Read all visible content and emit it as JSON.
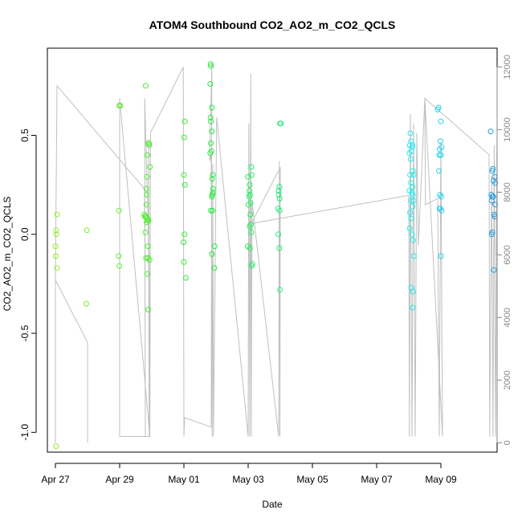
{
  "chart_data": {
    "type": "scatter",
    "title": "ATOM4 Southbound CO2_AO2_m_CO2_QCLS",
    "xlabel": "Date",
    "ylabel": "CO2_AO2_m_CO2_QCLS",
    "grid": false,
    "x_ticks": [
      "Apr 27",
      "Apr 29",
      "May 01",
      "May 03",
      "May 05",
      "May 07",
      "May 09"
    ],
    "y_ticks": [
      "-1.0",
      "-0.5",
      "0.0",
      "0.5"
    ],
    "y2_ticks": [
      "0",
      "2000",
      "4000",
      "6000",
      "8000",
      "10000",
      "12000"
    ],
    "xlim": [
      -0.25,
      13.75
    ],
    "ylim": [
      -1.1,
      0.94
    ],
    "y2lim": [
      -300,
      12600
    ],
    "colors": {
      "gradient_start": "#99ee22",
      "gradient_mid": "#22ee33",
      "gradient_late": "#22eeee",
      "gradient_end": "#2299dd",
      "altitude_line": "#c0c0c0",
      "axis": "#000000",
      "secondary_axis": "#888888"
    },
    "points": [
      [
        0.02,
        0.02
      ],
      [
        0.03,
        0.0
      ],
      [
        0.0,
        -0.06
      ],
      [
        0.01,
        -0.11
      ],
      [
        0.05,
        0.1
      ],
      [
        0.05,
        -0.17
      ],
      [
        0.02,
        -1.07
      ],
      [
        0.98,
        0.02
      ],
      [
        0.96,
        -0.35
      ],
      [
        1.99,
        0.65
      ],
      [
        2.02,
        0.65
      ],
      [
        1.98,
        0.12
      ],
      [
        1.97,
        -0.11
      ],
      [
        1.99,
        -0.16
      ],
      [
        2.81,
        0.75
      ],
      [
        2.77,
        0.1
      ],
      [
        2.79,
        0.09
      ],
      [
        2.82,
        0.09
      ],
      [
        2.8,
        0.09
      ],
      [
        2.86,
        0.08
      ],
      [
        2.87,
        0.07
      ],
      [
        2.84,
        0.06
      ],
      [
        2.83,
        0.23
      ],
      [
        2.84,
        0.2
      ],
      [
        2.85,
        0.29
      ],
      [
        2.86,
        0.4
      ],
      [
        2.89,
        0.46
      ],
      [
        2.92,
        0.45
      ],
      [
        2.91,
        0.46
      ],
      [
        2.94,
        0.34
      ],
      [
        2.83,
        0.15
      ],
      [
        2.8,
        0.01
      ],
      [
        2.9,
        0.07
      ],
      [
        2.88,
        -0.06
      ],
      [
        2.82,
        -0.12
      ],
      [
        2.89,
        -0.12
      ],
      [
        2.93,
        -0.13
      ],
      [
        2.86,
        -0.2
      ],
      [
        2.89,
        -0.38
      ],
      [
        4.03,
        0.57
      ],
      [
        4.01,
        0.49
      ],
      [
        4.0,
        0.3
      ],
      [
        4.03,
        0.25
      ],
      [
        4.02,
        0.0
      ],
      [
        3.99,
        -0.04
      ],
      [
        4.0,
        -0.14
      ],
      [
        4.06,
        -0.22
      ],
      [
        4.83,
        0.86
      ],
      [
        4.84,
        0.85
      ],
      [
        4.82,
        0.76
      ],
      [
        4.87,
        0.64
      ],
      [
        4.83,
        0.59
      ],
      [
        4.84,
        0.57
      ],
      [
        4.87,
        0.52
      ],
      [
        4.84,
        0.46
      ],
      [
        4.86,
        0.42
      ],
      [
        4.82,
        0.41
      ],
      [
        4.9,
        0.3
      ],
      [
        4.88,
        0.28
      ],
      [
        4.91,
        0.23
      ],
      [
        4.88,
        0.2
      ],
      [
        4.9,
        0.21
      ],
      [
        4.87,
        0.19
      ],
      [
        4.89,
        0.12
      ],
      [
        4.84,
        0.12
      ],
      [
        4.96,
        -0.06
      ],
      [
        4.87,
        -0.1
      ],
      [
        4.95,
        -0.17
      ],
      [
        5.99,
        0.29
      ],
      [
        6.1,
        0.34
      ],
      [
        6.11,
        0.3
      ],
      [
        6.05,
        0.25
      ],
      [
        6.04,
        0.22
      ],
      [
        6.06,
        0.2
      ],
      [
        6.03,
        0.19
      ],
      [
        6.08,
        0.16
      ],
      [
        6.01,
        0.15
      ],
      [
        6.07,
        0.1
      ],
      [
        6.05,
        0.04
      ],
      [
        6.09,
        0.05
      ],
      [
        6.1,
        0.01
      ],
      [
        5.99,
        -0.06
      ],
      [
        6.06,
        -0.07
      ],
      [
        6.13,
        -0.15
      ],
      [
        6.11,
        -0.16
      ],
      [
        7.02,
        0.56
      ],
      [
        6.99,
        0.56
      ],
      [
        6.97,
        0.24
      ],
      [
        6.95,
        0.22
      ],
      [
        6.95,
        0.2
      ],
      [
        6.98,
        0.18
      ],
      [
        6.93,
        0.13
      ],
      [
        6.98,
        0.12
      ],
      [
        6.94,
        0.0
      ],
      [
        6.97,
        -0.07
      ],
      [
        6.99,
        -0.28
      ],
      [
        11.05,
        0.51
      ],
      [
        11.07,
        0.47
      ],
      [
        11.03,
        0.45
      ],
      [
        11.1,
        0.44
      ],
      [
        11.12,
        0.45
      ],
      [
        11.08,
        0.42
      ],
      [
        11.02,
        0.41
      ],
      [
        11.06,
        0.38
      ],
      [
        11.13,
        0.32
      ],
      [
        11.15,
        0.3
      ],
      [
        11.04,
        0.3
      ],
      [
        11.07,
        0.26
      ],
      [
        11.12,
        0.24
      ],
      [
        11.02,
        0.22
      ],
      [
        11.1,
        0.21
      ],
      [
        11.13,
        0.2
      ],
      [
        11.06,
        0.17
      ],
      [
        11.15,
        0.17
      ],
      [
        11.12,
        0.14
      ],
      [
        11.04,
        0.11
      ],
      [
        11.07,
        0.08
      ],
      [
        11.03,
        0.03
      ],
      [
        11.1,
        0.0
      ],
      [
        11.13,
        -0.03
      ],
      [
        11.16,
        -0.11
      ],
      [
        11.08,
        -0.27
      ],
      [
        11.13,
        -0.29
      ],
      [
        11.12,
        -0.37
      ],
      [
        11.9,
        0.63
      ],
      [
        11.93,
        0.64
      ],
      [
        12.0,
        0.57
      ],
      [
        11.99,
        0.47
      ],
      [
        12.02,
        0.44
      ],
      [
        11.96,
        0.43
      ],
      [
        11.95,
        0.4
      ],
      [
        12.0,
        0.4
      ],
      [
        11.94,
        0.32
      ],
      [
        11.97,
        0.2
      ],
      [
        12.01,
        0.19
      ],
      [
        11.98,
        0.13
      ],
      [
        11.96,
        0.13
      ],
      [
        12.02,
        0.12
      ],
      [
        12.0,
        -0.11
      ],
      [
        13.55,
        0.52
      ],
      [
        13.62,
        0.33
      ],
      [
        13.6,
        0.32
      ],
      [
        13.67,
        0.29
      ],
      [
        13.64,
        0.27
      ],
      [
        13.69,
        0.26
      ],
      [
        13.57,
        0.2
      ],
      [
        13.6,
        0.19
      ],
      [
        13.63,
        0.19
      ],
      [
        13.58,
        0.17
      ],
      [
        13.69,
        0.15
      ],
      [
        13.66,
        0.1
      ],
      [
        13.68,
        0.09
      ],
      [
        13.6,
        0.01
      ],
      [
        13.58,
        0.0
      ],
      [
        13.65,
        -0.18
      ]
    ],
    "altitude_line": [
      [
        0.0,
        0
      ],
      [
        0.0,
        5200
      ],
      [
        1.0,
        3200
      ],
      [
        1.0,
        0
      ],
      [
        1.0,
        3200
      ],
      [
        0.0,
        5200
      ],
      [
        0.05,
        11400
      ],
      [
        2.78,
        8100
      ],
      [
        2.8,
        200
      ],
      [
        2.78,
        11000
      ],
      [
        2.9,
        6500
      ],
      [
        2.92,
        200
      ],
      [
        2.9,
        9700
      ],
      [
        2.94,
        200
      ],
      [
        2.0,
        11000
      ],
      [
        2.0,
        200
      ],
      [
        2.94,
        200
      ],
      [
        2.96,
        9900
      ],
      [
        3.98,
        12000
      ],
      [
        4.0,
        200
      ],
      [
        4.02,
        800
      ],
      [
        4.85,
        500
      ],
      [
        4.87,
        12100
      ],
      [
        4.8,
        9000
      ],
      [
        4.85,
        9200
      ],
      [
        4.88,
        200
      ],
      [
        4.9,
        8900
      ],
      [
        4.92,
        200
      ],
      [
        5.02,
        10400
      ],
      [
        6.0,
        200
      ],
      [
        6.02,
        10200
      ],
      [
        6.05,
        200
      ],
      [
        6.08,
        11800
      ],
      [
        6.1,
        200
      ],
      [
        6.12,
        7700
      ],
      [
        6.95,
        200
      ],
      [
        6.97,
        9000
      ],
      [
        6.99,
        200
      ],
      [
        7.0,
        8800
      ],
      [
        6.1,
        7000
      ],
      [
        11.0,
        7900
      ],
      [
        11.02,
        200
      ],
      [
        11.05,
        10500
      ],
      [
        11.1,
        200
      ],
      [
        11.15,
        10200
      ],
      [
        11.2,
        200
      ],
      [
        11.25,
        9900
      ],
      [
        11.3,
        6300
      ],
      [
        11.5,
        11000
      ],
      [
        11.52,
        7600
      ],
      [
        11.9,
        7800
      ],
      [
        11.95,
        200
      ],
      [
        12.0,
        9600
      ],
      [
        12.05,
        200
      ],
      [
        11.5,
        11000
      ],
      [
        13.5,
        9200
      ],
      [
        13.52,
        200
      ],
      [
        13.58,
        8500
      ],
      [
        13.62,
        200
      ],
      [
        13.66,
        9500
      ],
      [
        13.7,
        200
      ],
      [
        13.75,
        9800
      ],
      [
        13.72,
        6000
      ]
    ]
  }
}
